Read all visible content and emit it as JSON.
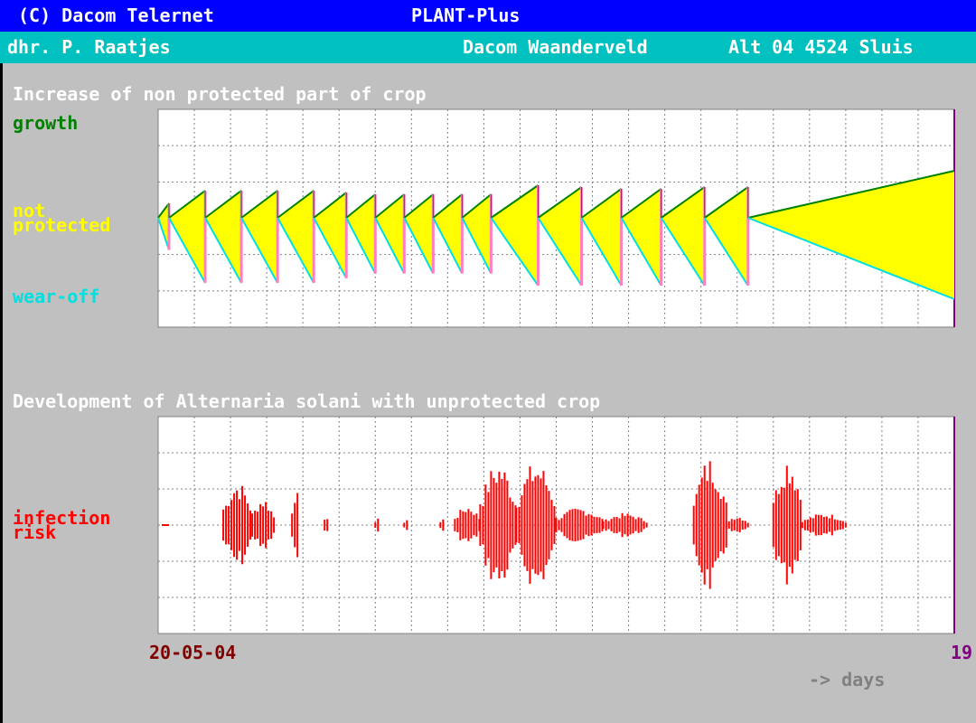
{
  "header": {
    "copyright": "(C) Dacom Telernet",
    "app_title": "PLANT-Plus"
  },
  "subheader": {
    "user": "dhr. P. Raatjes",
    "company": "Dacom Waanderveld",
    "address": "Alt 04 4524 Sluis"
  },
  "chart_data": [
    {
      "type": "area",
      "title": "Increase of non protected part of crop",
      "legend": [
        "growth",
        "not protected",
        "wear-off"
      ],
      "legend_placement": "left",
      "grid": true,
      "colors": {
        "growth": "#008000",
        "not_protected": "#ffff00",
        "wear_off": "#00e0e0",
        "spray_marker": "#ff80c0"
      },
      "segments": [
        {
          "start": 0.0,
          "end": 0.3
        },
        {
          "start": 0.3,
          "end": 1.3
        },
        {
          "start": 1.3,
          "end": 2.3
        },
        {
          "start": 2.3,
          "end": 3.3
        },
        {
          "start": 3.3,
          "end": 4.3
        },
        {
          "start": 4.3,
          "end": 5.2
        },
        {
          "start": 5.2,
          "end": 6.0
        },
        {
          "start": 6.0,
          "end": 6.8
        },
        {
          "start": 6.8,
          "end": 7.6
        },
        {
          "start": 7.6,
          "end": 8.4
        },
        {
          "start": 8.4,
          "end": 9.2
        },
        {
          "start": 9.2,
          "end": 10.5
        },
        {
          "start": 10.5,
          "end": 11.7
        },
        {
          "start": 11.7,
          "end": 12.8
        },
        {
          "start": 12.8,
          "end": 13.9
        },
        {
          "start": 13.9,
          "end": 15.1
        },
        {
          "start": 15.1,
          "end": 16.3
        },
        {
          "start": 16.3,
          "end": 22.0
        }
      ]
    },
    {
      "type": "bar",
      "title": "Development of Alternaria solani with unprotected crop",
      "legend": [
        "infection risk"
      ],
      "legend_placement": "left",
      "grid": true,
      "colors": {
        "risk": "#ff0000"
      },
      "x_start_label": "20-05-04",
      "x_end_label": "19",
      "x_unit_label": "-> days",
      "clusters": [
        {
          "from": 1.8,
          "to": 2.6,
          "mag": 0.55
        },
        {
          "from": 2.6,
          "to": 3.2,
          "mag": 0.35
        },
        {
          "from": 3.7,
          "to": 3.9,
          "mag": 0.5
        },
        {
          "from": 4.6,
          "to": 4.7,
          "mag": 0.15
        },
        {
          "from": 6.0,
          "to": 6.1,
          "mag": 0.1
        },
        {
          "from": 6.8,
          "to": 6.9,
          "mag": 0.1
        },
        {
          "from": 7.8,
          "to": 7.9,
          "mag": 0.1
        },
        {
          "from": 8.2,
          "to": 8.9,
          "mag": 0.25
        },
        {
          "from": 8.9,
          "to": 9.9,
          "mag": 0.8
        },
        {
          "from": 9.9,
          "to": 11.0,
          "mag": 0.8
        },
        {
          "from": 11.0,
          "to": 12.3,
          "mag": 0.22
        },
        {
          "from": 12.3,
          "to": 13.5,
          "mag": 0.15
        },
        {
          "from": 14.8,
          "to": 15.7,
          "mag": 0.85
        },
        {
          "from": 15.7,
          "to": 16.3,
          "mag": 0.12
        },
        {
          "from": 17.0,
          "to": 17.8,
          "mag": 0.88
        },
        {
          "from": 17.8,
          "to": 19.0,
          "mag": 0.15
        }
      ]
    }
  ]
}
